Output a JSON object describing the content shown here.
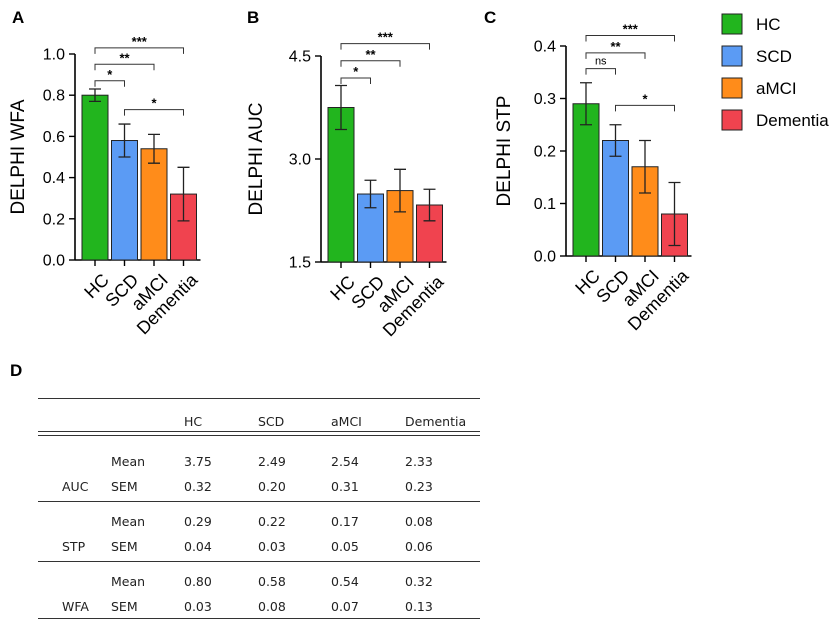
{
  "groups": [
    "HC",
    "SCD",
    "aMCI",
    "Dementia"
  ],
  "colors": {
    "HC": "#22b51e",
    "SCD": "#5b9bf4",
    "aMCI": "#ff8c1a",
    "Dementia": "#f0434f"
  },
  "legend": [
    "HC",
    "SCD",
    "aMCI",
    "Dementia"
  ],
  "chart_data": [
    {
      "type": "bar",
      "panel": "A",
      "ylabel": "DELPHI WFA",
      "categories": [
        "HC",
        "SCD",
        "aMCI",
        "Dementia"
      ],
      "values": [
        0.8,
        0.58,
        0.54,
        0.32
      ],
      "errors": [
        0.03,
        0.08,
        0.07,
        0.13
      ],
      "ylim": [
        0.0,
        1.0
      ],
      "yticks": [
        0.0,
        0.2,
        0.4,
        0.6,
        0.8,
        1.0
      ],
      "ytick_labels": [
        "0.0",
        "0.2",
        "0.4",
        "0.6",
        "0.8",
        "1.0"
      ],
      "comparisons": [
        {
          "from": 0,
          "to": 1,
          "label": "*",
          "level": 0.87
        },
        {
          "from": 0,
          "to": 2,
          "label": "**",
          "level": 0.95
        },
        {
          "from": 0,
          "to": 3,
          "label": "***",
          "level": 1.03
        },
        {
          "from": 1,
          "to": 3,
          "label": "*",
          "level": 0.73
        }
      ]
    },
    {
      "type": "bar",
      "panel": "B",
      "ylabel": "DELPHI AUC",
      "categories": [
        "HC",
        "SCD",
        "aMCI",
        "Dementia"
      ],
      "values": [
        3.75,
        2.49,
        2.54,
        2.33
      ],
      "errors": [
        0.32,
        0.2,
        0.31,
        0.23
      ],
      "ylim": [
        1.5,
        4.5
      ],
      "yticks": [
        1.5,
        3.0,
        4.5
      ],
      "ytick_labels": [
        "1.5",
        "3.0",
        "4.5"
      ],
      "comparisons": [
        {
          "from": 0,
          "to": 1,
          "label": "*",
          "level": 4.18
        },
        {
          "from": 0,
          "to": 2,
          "label": "**",
          "level": 4.43
        },
        {
          "from": 0,
          "to": 3,
          "label": "***",
          "level": 4.68
        }
      ]
    },
    {
      "type": "bar",
      "panel": "C",
      "ylabel": "DELPHI STP",
      "categories": [
        "HC",
        "SCD",
        "aMCI",
        "Dementia"
      ],
      "values": [
        0.29,
        0.22,
        0.17,
        0.08
      ],
      "errors": [
        0.04,
        0.03,
        0.05,
        0.06
      ],
      "ylim": [
        0.0,
        0.4
      ],
      "yticks": [
        0.0,
        0.1,
        0.2,
        0.3,
        0.4
      ],
      "ytick_labels": [
        "0.0",
        "0.1",
        "0.2",
        "0.3",
        "0.4"
      ],
      "comparisons": [
        {
          "from": 0,
          "to": 1,
          "label": "ns",
          "level": 0.357
        },
        {
          "from": 0,
          "to": 2,
          "label": "**",
          "level": 0.387
        },
        {
          "from": 0,
          "to": 3,
          "label": "***",
          "level": 0.42
        },
        {
          "from": 1,
          "to": 3,
          "label": "*",
          "level": 0.287
        }
      ]
    },
    {
      "type": "table",
      "panel": "D",
      "columns": [
        "HC",
        "SCD",
        "aMCI",
        "Dementia"
      ],
      "sections": [
        {
          "name": "AUC",
          "rows": [
            {
              "stat": "Mean",
              "values": [
                "3.75",
                "2.49",
                "2.54",
                "2.33"
              ]
            },
            {
              "stat": "SEM",
              "values": [
                "0.32",
                "0.20",
                "0.31",
                "0.23"
              ]
            }
          ]
        },
        {
          "name": "STP",
          "rows": [
            {
              "stat": "Mean",
              "values": [
                "0.29",
                "0.22",
                "0.17",
                "0.08"
              ]
            },
            {
              "stat": "SEM",
              "values": [
                "0.04",
                "0.03",
                "0.05",
                "0.06"
              ]
            }
          ]
        },
        {
          "name": "WFA",
          "rows": [
            {
              "stat": "Mean",
              "values": [
                "0.80",
                "0.58",
                "0.54",
                "0.32"
              ]
            },
            {
              "stat": "SEM",
              "values": [
                "0.03",
                "0.08",
                "0.07",
                "0.13"
              ]
            }
          ]
        }
      ]
    }
  ]
}
